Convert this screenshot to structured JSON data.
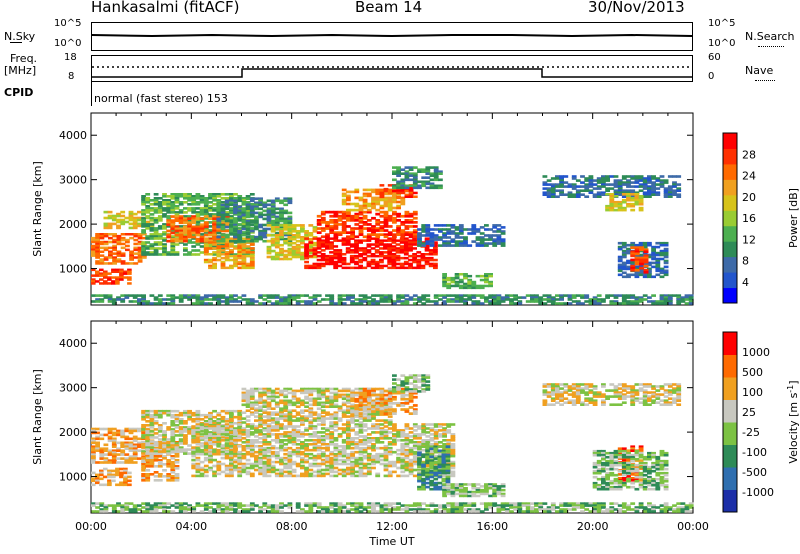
{
  "header": {
    "station": "Hankasalmi (fitACF)",
    "beam": "Beam 14",
    "date": "30/Nov/2013"
  },
  "top_panels": {
    "nsky_label": "N.Sky",
    "nsky_ticks": [
      "10^5",
      "10^0"
    ],
    "nsearch_label": "N.Search",
    "nsearch_ticks": [
      "10^5",
      "10^0"
    ],
    "freq_label": "Freq.",
    "freq_unit": "[MHz]",
    "freq_ticks": [
      "18",
      "8"
    ],
    "nave_label": "Nave",
    "nave_ticks": [
      "60",
      "0"
    ],
    "cpid_label": "CPID",
    "cpid_value": "normal (fast stereo) 153"
  },
  "chart_data": [
    {
      "type": "heatmap",
      "ylabel": "Slant Range [km]",
      "y_ticks": [
        "4000",
        "3000",
        "2000",
        "1000"
      ],
      "ylim": [
        180,
        4500
      ],
      "colorbar_label": "Power [dB]",
      "colorbar_ticks": [
        "28",
        "24",
        "20",
        "16",
        "12",
        "8",
        "4"
      ],
      "colors": [
        "#0000ff",
        "#2255cc",
        "#3d6aa8",
        "#2e8b57",
        "#4caf50",
        "#99cc33",
        "#d7c31a",
        "#f0a020",
        "#ff6a00",
        "#ff3000",
        "#ff0000"
      ],
      "regions": [
        {
          "t": [
            0.0,
            1.6
          ],
          "r": [
            650,
            1000
          ],
          "level": 9
        },
        {
          "t": [
            0.0,
            2.2
          ],
          "r": [
            1100,
            1800
          ],
          "level": 8
        },
        {
          "t": [
            0.5,
            2.5
          ],
          "r": [
            1900,
            2300
          ],
          "level": 6
        },
        {
          "t": [
            2.0,
            6.5
          ],
          "r": [
            1300,
            2700
          ],
          "level": 4
        },
        {
          "t": [
            3.0,
            5.5
          ],
          "r": [
            1600,
            2200
          ],
          "level": 8
        },
        {
          "t": [
            4.5,
            6.5
          ],
          "r": [
            1000,
            1700
          ],
          "level": 7
        },
        {
          "t": [
            5.0,
            8.0
          ],
          "r": [
            1600,
            2600
          ],
          "level": 3
        },
        {
          "t": [
            7.0,
            9.0
          ],
          "r": [
            1200,
            2000
          ],
          "level": 6
        },
        {
          "t": [
            8.5,
            13.8
          ],
          "r": [
            1000,
            1700
          ],
          "level": 10
        },
        {
          "t": [
            9.0,
            13.0
          ],
          "r": [
            1700,
            2300
          ],
          "level": 9
        },
        {
          "t": [
            10.0,
            12.5
          ],
          "r": [
            2300,
            2800
          ],
          "level": 7
        },
        {
          "t": [
            11.5,
            13.0
          ],
          "r": [
            2600,
            2900
          ],
          "level": 9
        },
        {
          "t": [
            12.0,
            14.0
          ],
          "r": [
            2800,
            3300
          ],
          "level": 3
        },
        {
          "t": [
            13.0,
            16.5
          ],
          "r": [
            1500,
            2000
          ],
          "level": 2
        },
        {
          "t": [
            14.0,
            16.0
          ],
          "r": [
            550,
            900
          ],
          "level": 4
        },
        {
          "t": [
            18.0,
            23.5
          ],
          "r": [
            2600,
            3100
          ],
          "level": 2
        },
        {
          "t": [
            20.5,
            22.0
          ],
          "r": [
            2300,
            2700
          ],
          "level": 6
        },
        {
          "t": [
            21.0,
            23.0
          ],
          "r": [
            800,
            1600
          ],
          "level": 2
        },
        {
          "t": [
            21.5,
            22.2
          ],
          "r": [
            900,
            1500
          ],
          "level": 9
        },
        {
          "t": [
            0.0,
            24.0
          ],
          "r": [
            200,
            420
          ],
          "level": 3
        }
      ]
    },
    {
      "type": "heatmap",
      "ylabel": "Slant Range [km]",
      "y_ticks": [
        "4000",
        "3000",
        "2000",
        "1000"
      ],
      "ylim": [
        180,
        4500
      ],
      "colorbar_label": "Velocity [m s^-1]",
      "colorbar_ticks": [
        "1000",
        "500",
        "100",
        "25",
        "-25",
        "-100",
        "-500",
        "-1000"
      ],
      "colors": [
        "#1c2fa8",
        "#2f6fb0",
        "#2e8b57",
        "#7cc243",
        "#c8c8c0",
        "#f0a020",
        "#ff6a00",
        "#ff0000"
      ],
      "x_ticks": [
        "00:00",
        "04:00",
        "08:00",
        "12:00",
        "16:00",
        "20:00",
        "00:00"
      ],
      "xlabel": "Time UT",
      "regions": [
        {
          "t": [
            0.0,
            2.5
          ],
          "r": [
            1300,
            2100
          ],
          "level": 5
        },
        {
          "t": [
            0.0,
            1.6
          ],
          "r": [
            800,
            1200
          ],
          "level": 5
        },
        {
          "t": [
            2.0,
            3.5
          ],
          "r": [
            900,
            1800
          ],
          "level": 5
        },
        {
          "t": [
            2.0,
            6.0
          ],
          "r": [
            1500,
            2500
          ],
          "level": 4
        },
        {
          "t": [
            4.0,
            14.5
          ],
          "r": [
            1000,
            2200
          ],
          "level": 4
        },
        {
          "t": [
            6.0,
            12.0
          ],
          "r": [
            2200,
            3000
          ],
          "level": 4
        },
        {
          "t": [
            10.5,
            13.0
          ],
          "r": [
            2400,
            3000
          ],
          "level": 5
        },
        {
          "t": [
            12.0,
            13.5
          ],
          "r": [
            2900,
            3300
          ],
          "level": 3
        },
        {
          "t": [
            13.0,
            14.3
          ],
          "r": [
            700,
            1700
          ],
          "level": 2
        },
        {
          "t": [
            14.0,
            16.5
          ],
          "r": [
            550,
            850
          ],
          "level": 3
        },
        {
          "t": [
            18.0,
            23.5
          ],
          "r": [
            2600,
            3100
          ],
          "level": 4
        },
        {
          "t": [
            21.0,
            22.0
          ],
          "r": [
            900,
            1700
          ],
          "level": 6
        },
        {
          "t": [
            20.0,
            23.0
          ],
          "r": [
            700,
            1600
          ],
          "level": 3
        },
        {
          "t": [
            0.0,
            24.0
          ],
          "r": [
            200,
            420
          ],
          "level": 3
        }
      ]
    }
  ]
}
